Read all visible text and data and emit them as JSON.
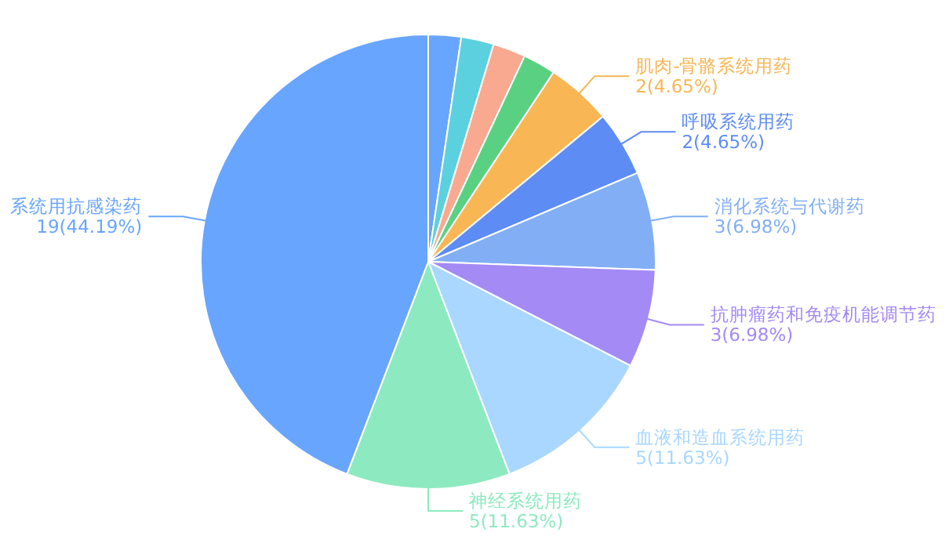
{
  "chart_data": {
    "type": "pie",
    "categories": [
      null,
      null,
      null,
      null,
      "肌肉-骨骼系统用药",
      "呼吸系统用药",
      "消化系统与代谢药",
      "抗肿瘤药和免疫机能调节药",
      "血液和造血系统用药",
      "神经系统用药",
      "系统用抗感染药"
    ],
    "values": [
      1,
      1,
      1,
      1,
      2,
      2,
      3,
      3,
      5,
      5,
      19
    ],
    "colors": [
      "#68a5ff",
      "#5bd1df",
      "#f8a98f",
      "#5ad182",
      "#f8b654",
      "#5e8cf5",
      "#82aef5",
      "#a48af5",
      "#a9d7ff",
      "#8deac0",
      "#68a5ff"
    ],
    "value_labels": [
      null,
      null,
      null,
      null,
      "2(4.65%)",
      "2(4.65%)",
      "3(6.98%)",
      "3(6.98%)",
      "5(11.63%)",
      "5(11.63%)",
      "19(44.19%)"
    ]
  }
}
